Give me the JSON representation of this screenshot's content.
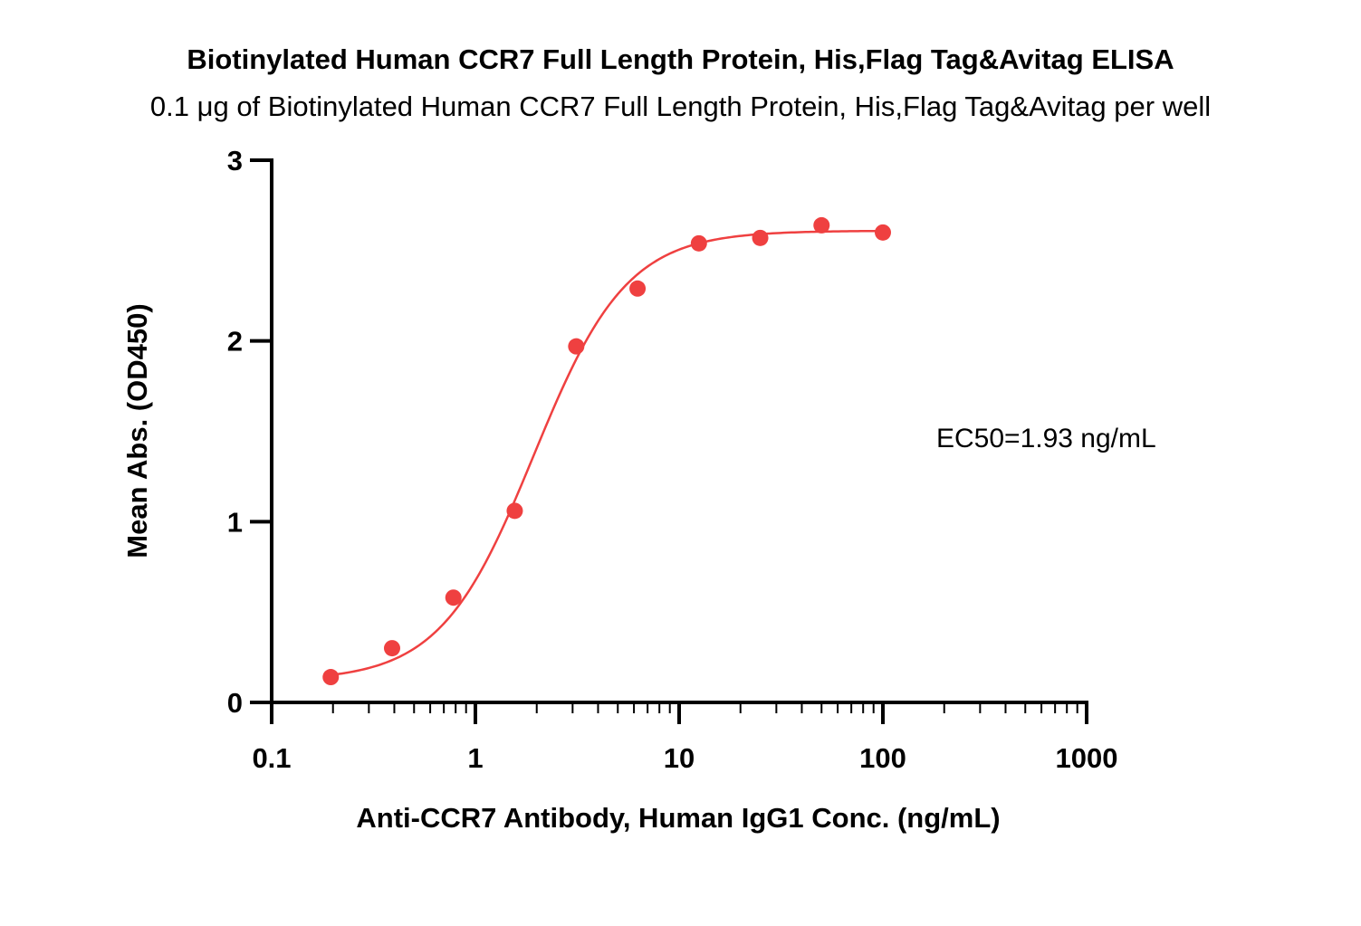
{
  "chart_data": {
    "type": "scatter",
    "title": "Biotinylated Human CCR7 Full Length Protein, His,Flag Tag&Avitag ELISA",
    "subtitle": "0.1 μg of Biotinylated Human CCR7 Full Length Protein, His,Flag Tag&Avitag per well",
    "xlabel": "Anti-CCR7 Antibody, Human IgG1 Conc. (ng/mL)",
    "ylabel": "Mean Abs. (OD450)",
    "x_scale": "log",
    "xlim": [
      0.1,
      1000
    ],
    "ylim": [
      0,
      3
    ],
    "x_ticks": [
      "0.1",
      "1",
      "10",
      "100",
      "1000"
    ],
    "y_ticks": [
      "0",
      "1",
      "2",
      "3"
    ],
    "grid": false,
    "annotation": "EC50=1.93 ng/mL",
    "series": [
      {
        "color": "#ef4040",
        "x": [
          0.195,
          0.39,
          0.78,
          1.56,
          3.125,
          6.25,
          12.5,
          25,
          50,
          100
        ],
        "y": [
          0.14,
          0.3,
          0.58,
          1.06,
          1.97,
          2.29,
          2.54,
          2.57,
          2.64,
          2.6
        ]
      }
    ],
    "fit": {
      "model": "4PL",
      "bottom": 0.12,
      "top": 2.61,
      "ec50": 1.93,
      "hill": 1.9
    }
  }
}
